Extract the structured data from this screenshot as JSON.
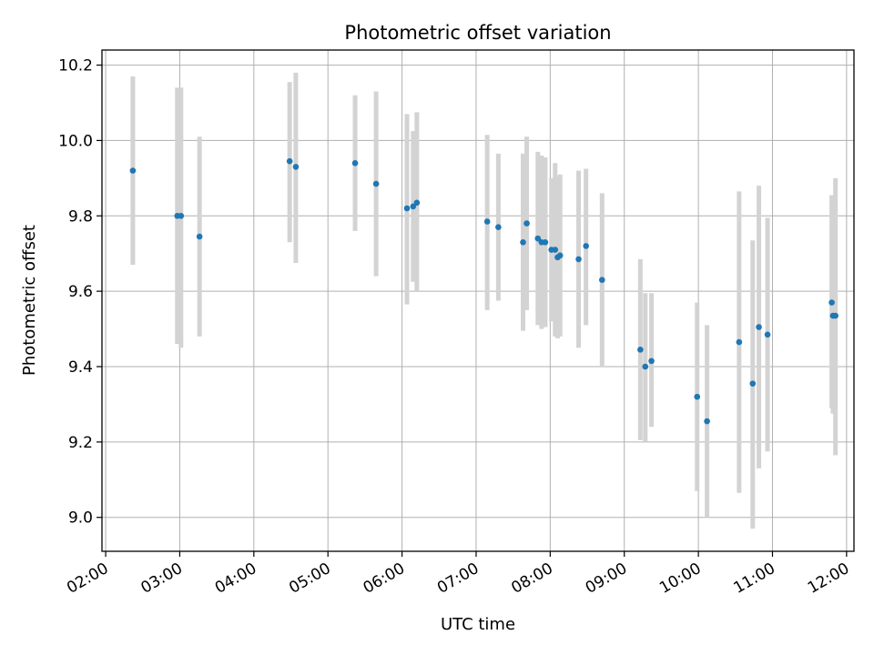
{
  "chart_data": {
    "type": "scatter",
    "title": "Photometric offset variation",
    "xlabel": "UTC time",
    "ylabel": "Photometric offset",
    "x_ticks": [
      "02:00",
      "03:00",
      "04:00",
      "05:00",
      "06:00",
      "07:00",
      "08:00",
      "09:00",
      "10:00",
      "11:00",
      "12:00"
    ],
    "y_ticks": [
      "9.0",
      "9.2",
      "9.4",
      "9.6",
      "9.8",
      "10.0",
      "10.2"
    ],
    "xlim": [
      "01:57",
      "12:06"
    ],
    "ylim": [
      8.91,
      10.24
    ],
    "grid": true,
    "x_tick_rotation_deg": 30,
    "colors": {
      "marker": "#1f77b4",
      "errorbar": "#d3d3d3",
      "grid": "#b0b0b0"
    },
    "series": [
      {
        "points": [
          {
            "x": "02:22",
            "y": 9.92,
            "lo": 9.67,
            "hi": 10.17
          },
          {
            "x": "02:58",
            "y": 9.8,
            "lo": 9.46,
            "hi": 10.14
          },
          {
            "x": "03:01",
            "y": 9.8,
            "lo": 9.45,
            "hi": 10.14
          },
          {
            "x": "03:16",
            "y": 9.745,
            "lo": 9.48,
            "hi": 10.01
          },
          {
            "x": "04:29",
            "y": 9.945,
            "lo": 9.73,
            "hi": 10.155
          },
          {
            "x": "04:34",
            "y": 9.93,
            "lo": 9.675,
            "hi": 10.18
          },
          {
            "x": "05:22",
            "y": 9.94,
            "lo": 9.76,
            "hi": 10.12
          },
          {
            "x": "05:39",
            "y": 9.885,
            "lo": 9.64,
            "hi": 10.13
          },
          {
            "x": "06:04",
            "y": 9.82,
            "lo": 9.565,
            "hi": 10.07
          },
          {
            "x": "06:09",
            "y": 9.825,
            "lo": 9.625,
            "hi": 10.025
          },
          {
            "x": "06:12",
            "y": 9.835,
            "lo": 9.6,
            "hi": 10.075
          },
          {
            "x": "07:09",
            "y": 9.785,
            "lo": 9.55,
            "hi": 10.015
          },
          {
            "x": "07:18",
            "y": 9.77,
            "lo": 9.575,
            "hi": 9.965
          },
          {
            "x": "07:38",
            "y": 9.73,
            "lo": 9.495,
            "hi": 9.965
          },
          {
            "x": "07:41",
            "y": 9.78,
            "lo": 9.55,
            "hi": 10.01
          },
          {
            "x": "07:50",
            "y": 9.74,
            "lo": 9.51,
            "hi": 9.97
          },
          {
            "x": "07:53",
            "y": 9.73,
            "lo": 9.5,
            "hi": 9.96
          },
          {
            "x": "07:56",
            "y": 9.73,
            "lo": 9.505,
            "hi": 9.955
          },
          {
            "x": "08:01",
            "y": 9.71,
            "lo": 9.52,
            "hi": 9.9
          },
          {
            "x": "08:04",
            "y": 9.71,
            "lo": 9.48,
            "hi": 9.94
          },
          {
            "x": "08:06",
            "y": 9.69,
            "lo": 9.475,
            "hi": 9.905
          },
          {
            "x": "08:08",
            "y": 9.695,
            "lo": 9.48,
            "hi": 9.91
          },
          {
            "x": "08:23",
            "y": 9.685,
            "lo": 9.45,
            "hi": 9.92
          },
          {
            "x": "08:29",
            "y": 9.72,
            "lo": 9.51,
            "hi": 9.925
          },
          {
            "x": "08:42",
            "y": 9.63,
            "lo": 9.4,
            "hi": 9.86
          },
          {
            "x": "09:13",
            "y": 9.445,
            "lo": 9.205,
            "hi": 9.685
          },
          {
            "x": "09:17",
            "y": 9.4,
            "lo": 9.2,
            "hi": 9.595
          },
          {
            "x": "09:22",
            "y": 9.415,
            "lo": 9.24,
            "hi": 9.595
          },
          {
            "x": "09:59",
            "y": 9.32,
            "lo": 9.07,
            "hi": 9.57
          },
          {
            "x": "10:07",
            "y": 9.255,
            "lo": 9.0,
            "hi": 9.51
          },
          {
            "x": "10:33",
            "y": 9.465,
            "lo": 9.065,
            "hi": 9.865
          },
          {
            "x": "10:44",
            "y": 9.355,
            "lo": 8.97,
            "hi": 9.735
          },
          {
            "x": "10:49",
            "y": 9.505,
            "lo": 9.13,
            "hi": 9.88
          },
          {
            "x": "10:56",
            "y": 9.485,
            "lo": 9.175,
            "hi": 9.795
          },
          {
            "x": "11:48",
            "y": 9.57,
            "lo": 9.29,
            "hi": 9.855
          },
          {
            "x": "11:49",
            "y": 9.535,
            "lo": 9.275,
            "hi": 9.795
          },
          {
            "x": "11:51",
            "y": 9.535,
            "lo": 9.165,
            "hi": 9.9
          }
        ]
      }
    ]
  }
}
